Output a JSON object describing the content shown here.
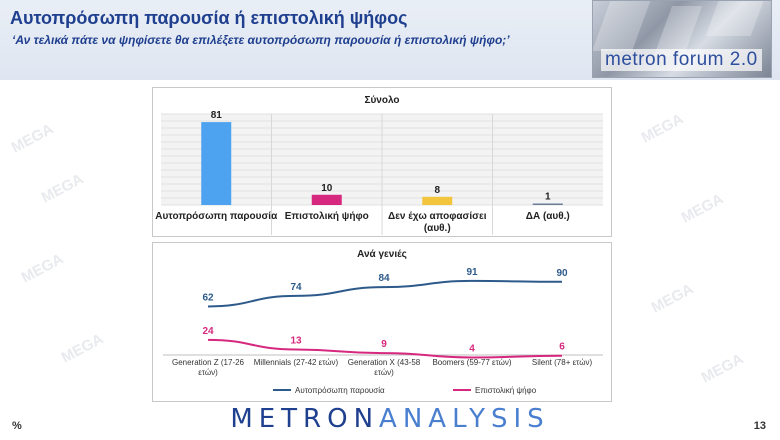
{
  "header": {
    "title": "Αυτοπρόσωπη παρουσία ή επιστολική ψήφος",
    "subtitle": "‘Αν τελικά πάτε να ψηφίσετε θα επιλέξετε αυτοπρόσωπη  παρουσία ή επιστολική ψήφο;’",
    "logo_text": "metron forum 2.0"
  },
  "footer": {
    "brand_part1": "METRON",
    "brand_part2": "ANALYSIS",
    "percent": "%",
    "page": "13"
  },
  "watermark": "MEGA",
  "chart_data": [
    {
      "type": "bar",
      "title": "Σύνολο",
      "categories": [
        "Αυτοπρόσωπη παρουσία",
        "Επιστολική ψήφο",
        "Δεν έχω αποφασίσει (αυθ.)",
        "ΔΑ (αυθ.)"
      ],
      "values": [
        81,
        10,
        8,
        1
      ],
      "colors": [
        "#4da3f0",
        "#d6287e",
        "#f2c53d",
        "#6b7d99"
      ],
      "ylim": [
        0,
        85
      ],
      "grid": true
    },
    {
      "type": "line",
      "title": "Ανά γενιές",
      "categories": [
        "Generation Z (17-26 ετών)",
        "Millennials (27-42 ετών)",
        "Generation X (43-58 ετών)",
        "Boomers (59-77 ετών)",
        "Silent (78+ ετών)"
      ],
      "series": [
        {
          "name": "Αυτοπρόσωπη παρουσία",
          "values": [
            62,
            74,
            84,
            91,
            90
          ],
          "color": "#2d5a8a"
        },
        {
          "name": "Επιστολική ψήφο",
          "values": [
            24,
            13,
            9,
            4,
            6
          ],
          "color": "#d6287e"
        }
      ],
      "ylim": [
        0,
        100
      ],
      "legend": "bottom",
      "grid": false
    }
  ]
}
